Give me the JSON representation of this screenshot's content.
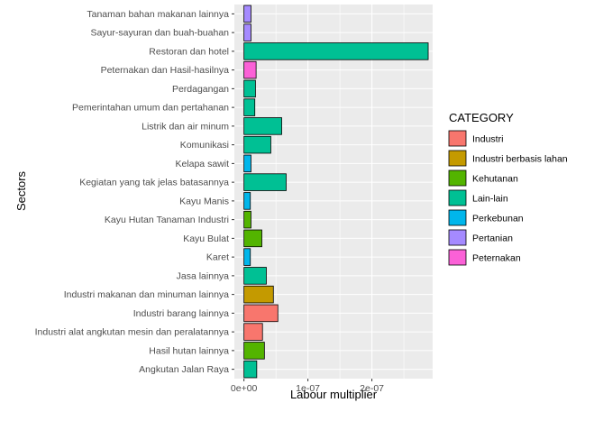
{
  "chart_data": {
    "type": "bar",
    "orientation": "horizontal",
    "xlabel": "Labour multiplier",
    "ylabel": "Sectors",
    "xlim": [
      -1.5e-08,
      2.95e-07
    ],
    "x_ticks": [
      {
        "value": 0,
        "label": "0e+00"
      },
      {
        "value": 1e-07,
        "label": "1e-07"
      },
      {
        "value": 2e-07,
        "label": "2e-07"
      }
    ],
    "legend": {
      "title": "CATEGORY",
      "position": "right",
      "entries": [
        {
          "name": "Industri",
          "color": "#F8766D"
        },
        {
          "name": "Industri berbasis lahan",
          "color": "#C49A00"
        },
        {
          "name": "Kehutanan",
          "color": "#53B400"
        },
        {
          "name": "Lain-lain",
          "color": "#00C094"
        },
        {
          "name": "Perkebunan",
          "color": "#00B6EB"
        },
        {
          "name": "Pertanian",
          "color": "#A58AFF"
        },
        {
          "name": "Peternakan",
          "color": "#FB61D7"
        }
      ]
    },
    "categories": [
      "Tanaman bahan makanan lainnya",
      "Sayur-sayuran dan buah-buahan",
      "Restoran dan hotel",
      "Peternakan dan Hasil-hasilnya",
      "Perdagangan",
      "Pemerintahan umum dan pertahanan",
      "Listrik dan air minum",
      "Komunikasi",
      "Kelapa sawit",
      "Kegiatan yang tak jelas batasannya",
      "Kayu Manis",
      "Kayu Hutan Tanaman Industri",
      "Kayu Bulat",
      "Karet",
      "Jasa lainnya",
      "Industri makanan dan minuman lainnya",
      "Industri barang lainnya",
      "Industri alat angkutan mesin dan peralatannya",
      "Hasil hutan lainnya",
      "Angkutan Jalan Raya"
    ],
    "values": [
      1.1e-08,
      1.1e-08,
      2.88e-07,
      1.9e-08,
      1.8e-08,
      1.7e-08,
      5.9e-08,
      4.2e-08,
      1.1e-08,
      6.6e-08,
      1e-08,
      1.1e-08,
      2.8e-08,
      1e-08,
      3.5e-08,
      4.6e-08,
      5.3e-08,
      2.9e-08,
      3.2e-08,
      2e-08
    ],
    "bar_categories": [
      "Pertanian",
      "Pertanian",
      "Lain-lain",
      "Peternakan",
      "Lain-lain",
      "Lain-lain",
      "Lain-lain",
      "Lain-lain",
      "Perkebunan",
      "Lain-lain",
      "Perkebunan",
      "Kehutanan",
      "Kehutanan",
      "Perkebunan",
      "Lain-lain",
      "Industri berbasis lahan",
      "Industri",
      "Industri",
      "Kehutanan",
      "Lain-lain"
    ],
    "grid": true,
    "panel_background": "#EBEBEB",
    "grid_color": "#FFFFFF"
  }
}
